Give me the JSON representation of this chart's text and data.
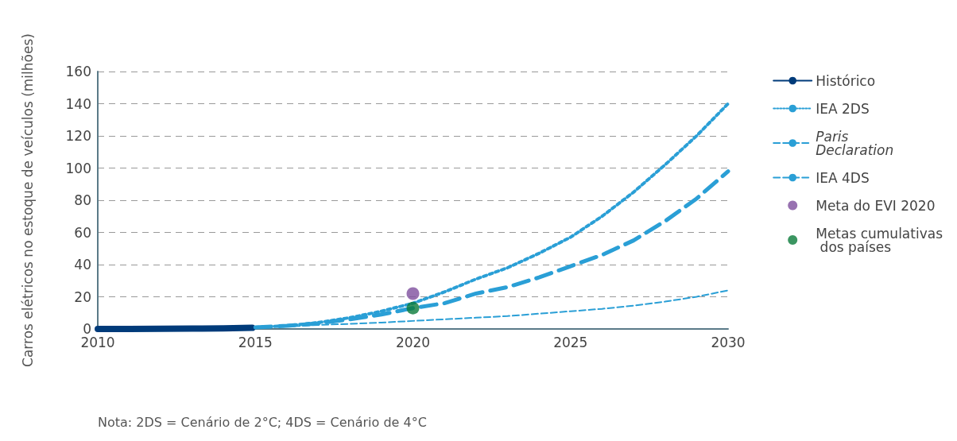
{
  "chart_data": {
    "type": "line",
    "ylabel": "Carros elétricos no estoque de veículos (milhões)",
    "xlim": [
      2010,
      2030
    ],
    "xticks": [
      2010,
      2015,
      2020,
      2025,
      2030
    ],
    "ylim": [
      0,
      160
    ],
    "yticks": [
      0,
      20,
      40,
      60,
      80,
      100,
      120,
      140,
      160
    ],
    "grid": "y",
    "legend": "right",
    "marker": "none",
    "series": [
      {
        "name": "Histórico",
        "color": "#003b7a",
        "line_style": "solid",
        "x": [
          2010,
          2011,
          2012,
          2013,
          2014,
          2014.9
        ],
        "values": [
          0,
          0,
          0.1,
          0.2,
          0.4,
          0.7
        ]
      },
      {
        "name": "IEA 2DS",
        "color": "#2a9fd6",
        "line_style": "dotted",
        "x": [
          2015,
          2016,
          2017,
          2018,
          2019,
          2020,
          2021,
          2022,
          2023,
          2024,
          2025,
          2026,
          2027,
          2028,
          2029,
          2030
        ],
        "values": [
          1,
          2,
          4,
          7,
          11,
          16,
          23,
          31,
          38,
          47,
          57,
          70,
          85,
          102,
          120,
          140
        ]
      },
      {
        "name": "Paris Declaration",
        "color": "#2a9fd6",
        "line_style": "dashed",
        "x": [
          2015,
          2016,
          2017,
          2018,
          2019,
          2020,
          2021,
          2022,
          2023,
          2024,
          2025,
          2026,
          2027,
          2028,
          2029,
          2030
        ],
        "values": [
          1,
          2,
          3.5,
          6,
          9,
          13,
          16,
          22,
          26,
          32,
          39,
          46,
          55,
          67,
          81,
          98
        ]
      },
      {
        "name": "IEA 4DS",
        "color": "#2a9fd6",
        "line_style": "dashed",
        "x": [
          2015,
          2016,
          2017,
          2018,
          2019,
          2020,
          2021,
          2022,
          2023,
          2024,
          2025,
          2026,
          2027,
          2028,
          2029,
          2030
        ],
        "values": [
          1,
          1.5,
          2.5,
          3.2,
          4,
          5,
          6,
          7,
          8,
          9.5,
          11,
          12.5,
          14.5,
          17,
          20,
          24
        ]
      },
      {
        "name": "Meta do EVI 2020",
        "type": "scatter",
        "marker": "circle",
        "color": "#7e4f9e",
        "x": [
          2020
        ],
        "values": [
          22
        ]
      },
      {
        "name": "Metas cumulativas dos países",
        "type": "scatter",
        "marker": "circle",
        "color": "#0a7a3a",
        "x": [
          2020
        ],
        "values": [
          13
        ]
      }
    ],
    "annotations": [
      "Nota: 2DS = Cenário de 2°C; 4DS = Cenário de 4°C"
    ]
  }
}
